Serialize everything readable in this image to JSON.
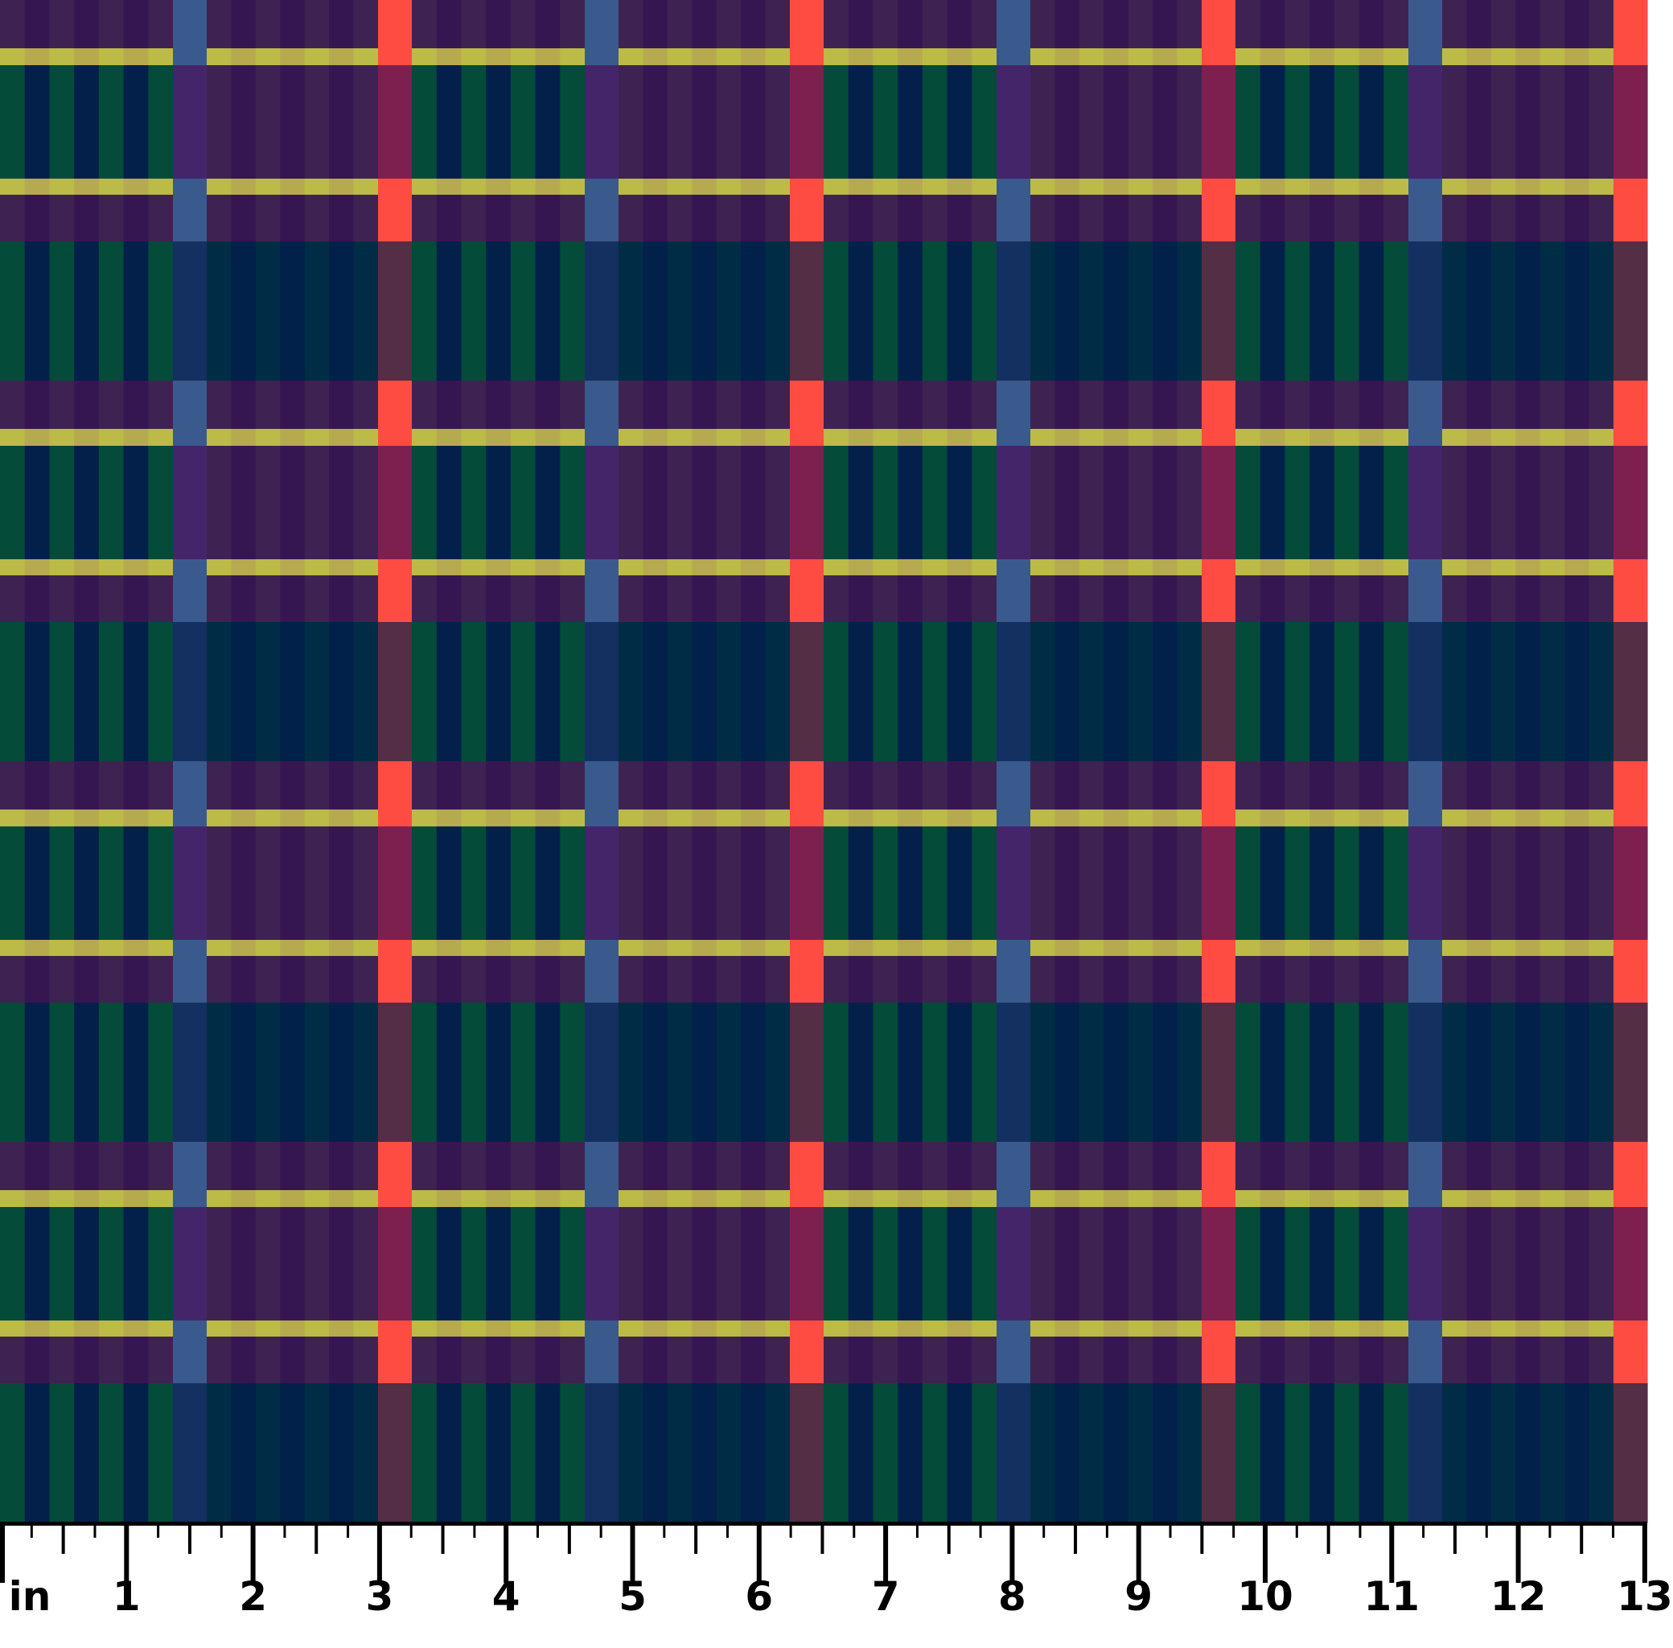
{
  "fabric": {
    "pattern": "plaid",
    "palette": {
      "purple_a": "#3e2352",
      "purple_b": "#361651",
      "green": "#044b39",
      "navy": "#02204a",
      "yellow_a": "#bcbb47",
      "yellow_b": "#b6aa4f",
      "blue": "#3a5a8e",
      "blue_on_green": "#45256a",
      "blue_on_dark": "#133060",
      "red": "#ff4c43",
      "red_on_green": "#7d2050",
      "red_on_dark": "#532e45",
      "dark_teal": "#002d45",
      "dark_navy": "#01204a"
    }
  },
  "ruler": {
    "unit_label": "in",
    "labels": [
      "1",
      "2",
      "3",
      "4",
      "5",
      "6",
      "7",
      "8",
      "9",
      "10",
      "11",
      "12",
      "13"
    ]
  }
}
